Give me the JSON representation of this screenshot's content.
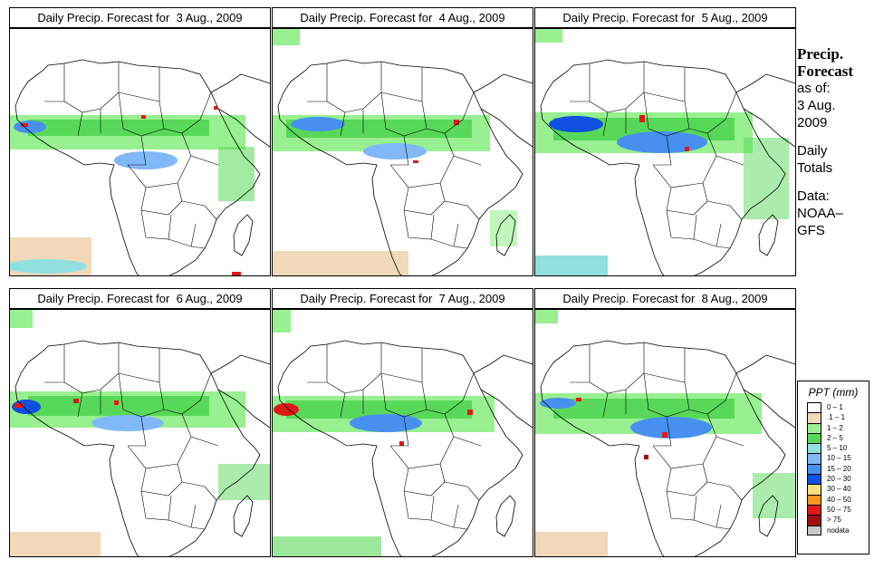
{
  "panels": [
    {
      "title": "Daily Precip. Forecast for  3 Aug., 2009"
    },
    {
      "title": "Daily Precip. Forecast for  4 Aug., 2009"
    },
    {
      "title": "Daily Precip. Forecast for  5 Aug., 2009"
    },
    {
      "title": "Daily Precip. Forecast for  6 Aug., 2009"
    },
    {
      "title": "Daily Precip. Forecast for  7 Aug., 2009"
    },
    {
      "title": "Daily Precip. Forecast for  8 Aug., 2009"
    }
  ],
  "side": {
    "heading1": "Precip.",
    "heading2": "Forecast",
    "asof": "as of:",
    "date1": "3 Aug.",
    "date2": "2009",
    "daily1": "Daily",
    "daily2": "Totals",
    "data1": "Data:",
    "data2": "NOAA–",
    "data3": "GFS"
  },
  "legend": {
    "title": "PPT (mm)",
    "items": [
      {
        "label": "0 – 1",
        "color": "#ffffff"
      },
      {
        "label": ".1 – 1",
        "color": "#f0d8b8"
      },
      {
        "label": "1 – 2",
        "color": "#98f090"
      },
      {
        "label": "2 – 5",
        "color": "#58d858"
      },
      {
        "label": "5 – 10",
        "color": "#90e0e0"
      },
      {
        "label": "10 – 15",
        "color": "#80b8f8"
      },
      {
        "label": "15 – 20",
        "color": "#4890f0"
      },
      {
        "label": "20 – 30",
        "color": "#1050e0"
      },
      {
        "label": "30 – 40",
        "color": "#f8e080"
      },
      {
        "label": "40 – 50",
        "color": "#f89820"
      },
      {
        "label": "50 – 75",
        "color": "#e01818"
      },
      {
        "label": "> 75",
        "color": "#a01010"
      },
      {
        "label": "nodata",
        "color": "#c8c8c8"
      }
    ]
  }
}
